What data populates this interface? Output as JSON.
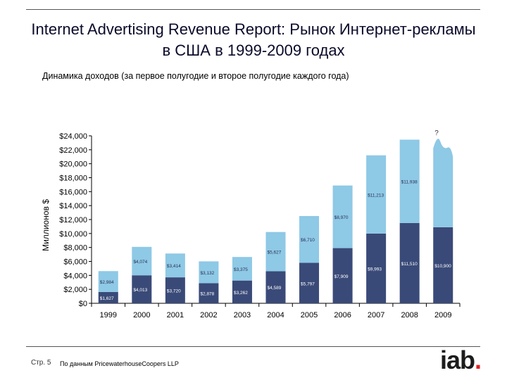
{
  "title": "Internet Advertising Revenue Report: Рынок Интернет-рекламы в США в 1999-2009 годах",
  "subtitle": "Динамика доходов (за первое полугодие и второе полугодие каждого года)",
  "footer": {
    "page": "Стр. 5",
    "source": "По данным PricewaterhouseCoopers LLP"
  },
  "logo": {
    "text": "iab",
    "dot": "."
  },
  "colors": {
    "first_half": "#3a4a78",
    "second_half": "#8ec9e6",
    "axis": "#000000",
    "label": "#000000"
  },
  "chart_data": {
    "type": "bar",
    "stacked": true,
    "title": "Динамика доходов (за первое полугодие и второе полугодие каждого года)",
    "xlabel": "",
    "ylabel": "Миллионов $",
    "ylim": [
      0,
      24000
    ],
    "yticks": [
      0,
      2000,
      4000,
      6000,
      8000,
      10000,
      12000,
      14000,
      16000,
      18000,
      20000,
      22000,
      24000
    ],
    "ytick_labels": [
      "$0",
      "$2,000",
      "$4,000",
      "$6,000",
      "$8,000",
      "$10,000",
      "$12,000",
      "$14,000",
      "$16,000",
      "$18,000",
      "$20,000",
      "$22,000",
      "$24,000"
    ],
    "categories": [
      "1999",
      "2000",
      "2001",
      "2002",
      "2003",
      "2004",
      "2005",
      "2006",
      "2007",
      "2008",
      "2009"
    ],
    "series": [
      {
        "name": "Первое полугодие",
        "values": [
          1627,
          4013,
          3720,
          2878,
          3262,
          4589,
          5797,
          7909,
          9993,
          11510,
          10900
        ],
        "labels": [
          "$1,627",
          "$4,013",
          "$3,720",
          "$2,878",
          "$3,262",
          "$4,589",
          "$5,797",
          "$7,909",
          "$9,993",
          "$11,510",
          "$10,900"
        ]
      },
      {
        "name": "Второе полугодие",
        "values": [
          2984,
          4074,
          3414,
          3132,
          3375,
          5627,
          6710,
          8970,
          11213,
          11938,
          null
        ],
        "labels": [
          "$2,984",
          "$4,074",
          "$3,414",
          "$3,132",
          "$3,375",
          "$5,627",
          "$6,710",
          "$8,970",
          "$11,213",
          "$11,938",
          ""
        ]
      }
    ],
    "annotation": "?"
  }
}
